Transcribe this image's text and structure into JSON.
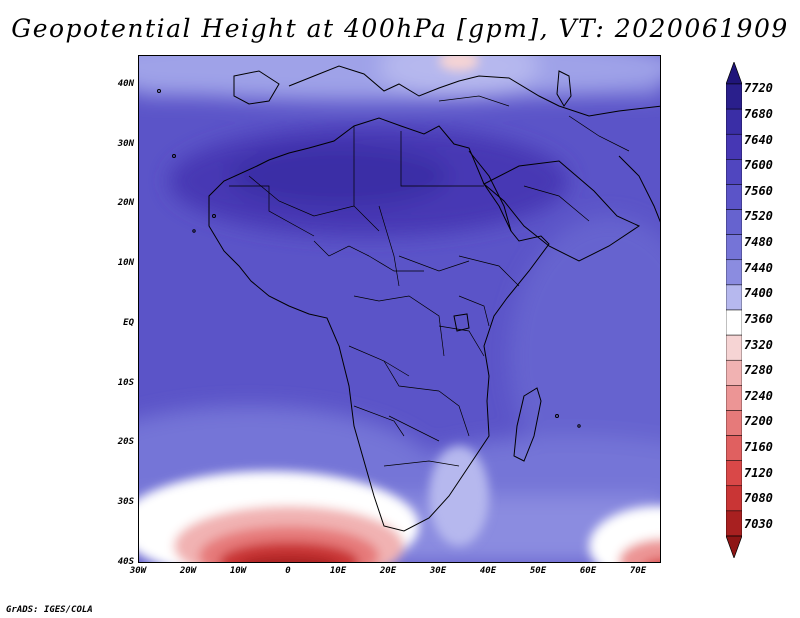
{
  "figure": {
    "title": "Geopotential Height at 400hPa [gpm], VT: 2020061909",
    "credit": "GrADS: IGES/COLA"
  },
  "axes": {
    "lat_ticks": [
      "40N",
      "30N",
      "20N",
      "10N",
      "EQ",
      "10S",
      "20S",
      "30S",
      "40S"
    ],
    "lon_ticks": [
      "30W",
      "20W",
      "10W",
      "0",
      "10E",
      "20E",
      "30E",
      "40E",
      "50E",
      "60E",
      "70E"
    ]
  },
  "colorbar": {
    "levels": [
      "7720",
      "7680",
      "7640",
      "7600",
      "7560",
      "7520",
      "7480",
      "7440",
      "7400",
      "7360",
      "7320",
      "7280",
      "7240",
      "7200",
      "7160",
      "7120",
      "7080",
      "7030"
    ],
    "colors": [
      "#2a1f8c",
      "#3a2ea6",
      "#4637b4",
      "#5046bf",
      "#5b54c8",
      "#6663cf",
      "#7574d7",
      "#8b8ce0",
      "#b6b8ee",
      "#ffffff",
      "#f6d4d4",
      "#f1b2b2",
      "#ec9595",
      "#e67a7a",
      "#e06060",
      "#d94848",
      "#c93535",
      "#a82020"
    ],
    "top_arrow_color": "#20157a",
    "bottom_arrow_color": "#8e1515"
  },
  "map": {
    "projection": "lat-lon",
    "extent": {
      "lon_min": -30,
      "lon_max": 75,
      "lat_min": -40,
      "lat_max": 45
    },
    "dominant_fill": "#5046bf",
    "land_outline_color": "#000000"
  }
}
